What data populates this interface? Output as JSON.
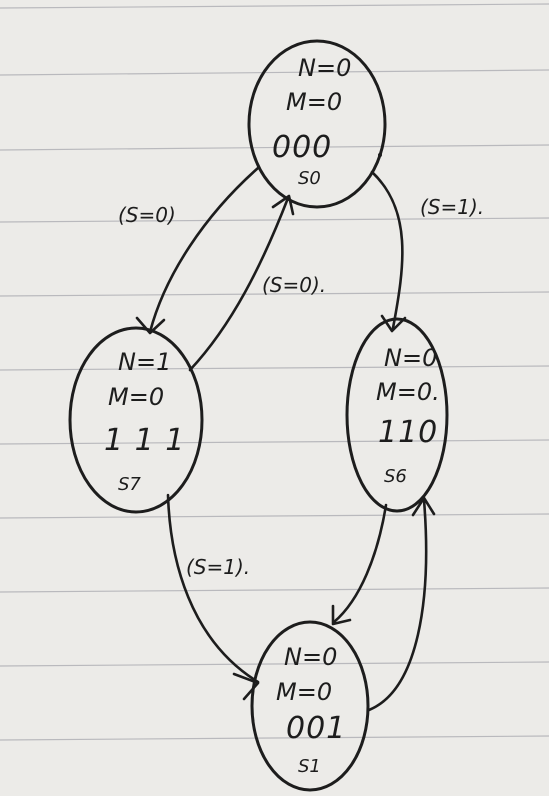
{
  "diagram": {
    "states": {
      "s0": {
        "n": "N=0",
        "m": "M=0",
        "code": "000",
        "name": "S0"
      },
      "s7": {
        "n": "N=1",
        "m": "M=0",
        "code": "1 1 1",
        "name": "S7"
      },
      "s6": {
        "n": "N=0",
        "m": "M=0.",
        "code": "110",
        "name": "S6"
      },
      "s1": {
        "n": "N=0",
        "m": "M=0",
        "code": "001",
        "name": "S1"
      }
    },
    "edges": {
      "s0_to_s7": "(S=0)",
      "s7_to_s0": "(S=0).",
      "s0_to_s6": "(S=1).",
      "s7_to_s1": "(S=1)."
    }
  }
}
